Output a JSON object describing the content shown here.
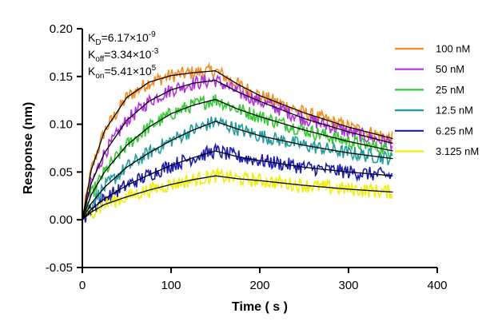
{
  "chart_data": {
    "type": "line",
    "xlabel": "Time ( s )",
    "ylabel": "Response (nm)",
    "xlim": [
      0,
      400
    ],
    "ylim": [
      -0.05,
      0.2
    ],
    "x_ticks": [
      "0",
      "100",
      "200",
      "300",
      "400"
    ],
    "y_ticks": [
      "-0.05",
      "0.00",
      "0.05",
      "0.10",
      "0.15",
      "0.20"
    ],
    "x_tick_values": [
      0,
      100,
      200,
      300,
      400
    ],
    "y_tick_values": [
      -0.05,
      0,
      0.05,
      0.1,
      0.15,
      0.2
    ],
    "legend_position": "right",
    "grid": false,
    "annotations": [
      {
        "symbol": "K",
        "sub": "D",
        "value": "=6.17×10",
        "exp": "-9"
      },
      {
        "symbol": "K",
        "sub": "off",
        "value": "=3.34×10",
        "exp": "-3"
      },
      {
        "symbol": "K",
        "sub": "on",
        "value": "=5.41×10",
        "exp": "5"
      }
    ],
    "fit_color": "#000000",
    "series": [
      {
        "name": "100 nM",
        "color": "#F28E1C",
        "x": [
          0,
          10,
          25,
          50,
          75,
          100,
          125,
          150,
          175,
          200,
          250,
          300,
          350
        ],
        "y": [
          0,
          0.052,
          0.093,
          0.128,
          0.144,
          0.151,
          0.154,
          0.156,
          0.142,
          0.13,
          0.112,
          0.097,
          0.085
        ]
      },
      {
        "name": "50 nM",
        "color": "#B42EE6",
        "x": [
          0,
          10,
          25,
          50,
          75,
          100,
          125,
          150,
          175,
          200,
          250,
          300,
          350
        ],
        "y": [
          0,
          0.038,
          0.07,
          0.104,
          0.124,
          0.136,
          0.143,
          0.146,
          0.134,
          0.124,
          0.106,
          0.092,
          0.08
        ]
      },
      {
        "name": "25 nM",
        "color": "#2ECC2E",
        "x": [
          0,
          10,
          25,
          50,
          75,
          100,
          125,
          150,
          175,
          200,
          250,
          300,
          350
        ],
        "y": [
          0,
          0.026,
          0.05,
          0.078,
          0.097,
          0.111,
          0.12,
          0.126,
          0.116,
          0.108,
          0.094,
          0.082,
          0.072
        ]
      },
      {
        "name": "12.5 nM",
        "color": "#1E9E9E",
        "x": [
          0,
          10,
          25,
          50,
          75,
          100,
          125,
          150,
          175,
          200,
          250,
          300,
          350
        ],
        "y": [
          0,
          0.017,
          0.034,
          0.055,
          0.07,
          0.083,
          0.094,
          0.103,
          0.095,
          0.088,
          0.078,
          0.07,
          0.064
        ]
      },
      {
        "name": "6.25 nM",
        "color": "#1A1AB4",
        "x": [
          0,
          10,
          25,
          50,
          75,
          100,
          125,
          150,
          175,
          200,
          250,
          300,
          350
        ],
        "y": [
          0,
          0.011,
          0.022,
          0.036,
          0.047,
          0.057,
          0.065,
          0.072,
          0.066,
          0.062,
          0.055,
          0.05,
          0.046
        ]
      },
      {
        "name": "3.125 nM",
        "color": "#F0F000",
        "x": [
          0,
          10,
          25,
          50,
          75,
          100,
          125,
          150,
          175,
          200,
          250,
          300,
          350
        ],
        "y": [
          0,
          0.008,
          0.016,
          0.024,
          0.031,
          0.037,
          0.042,
          0.046,
          0.043,
          0.041,
          0.036,
          0.032,
          0.029
        ]
      }
    ]
  }
}
